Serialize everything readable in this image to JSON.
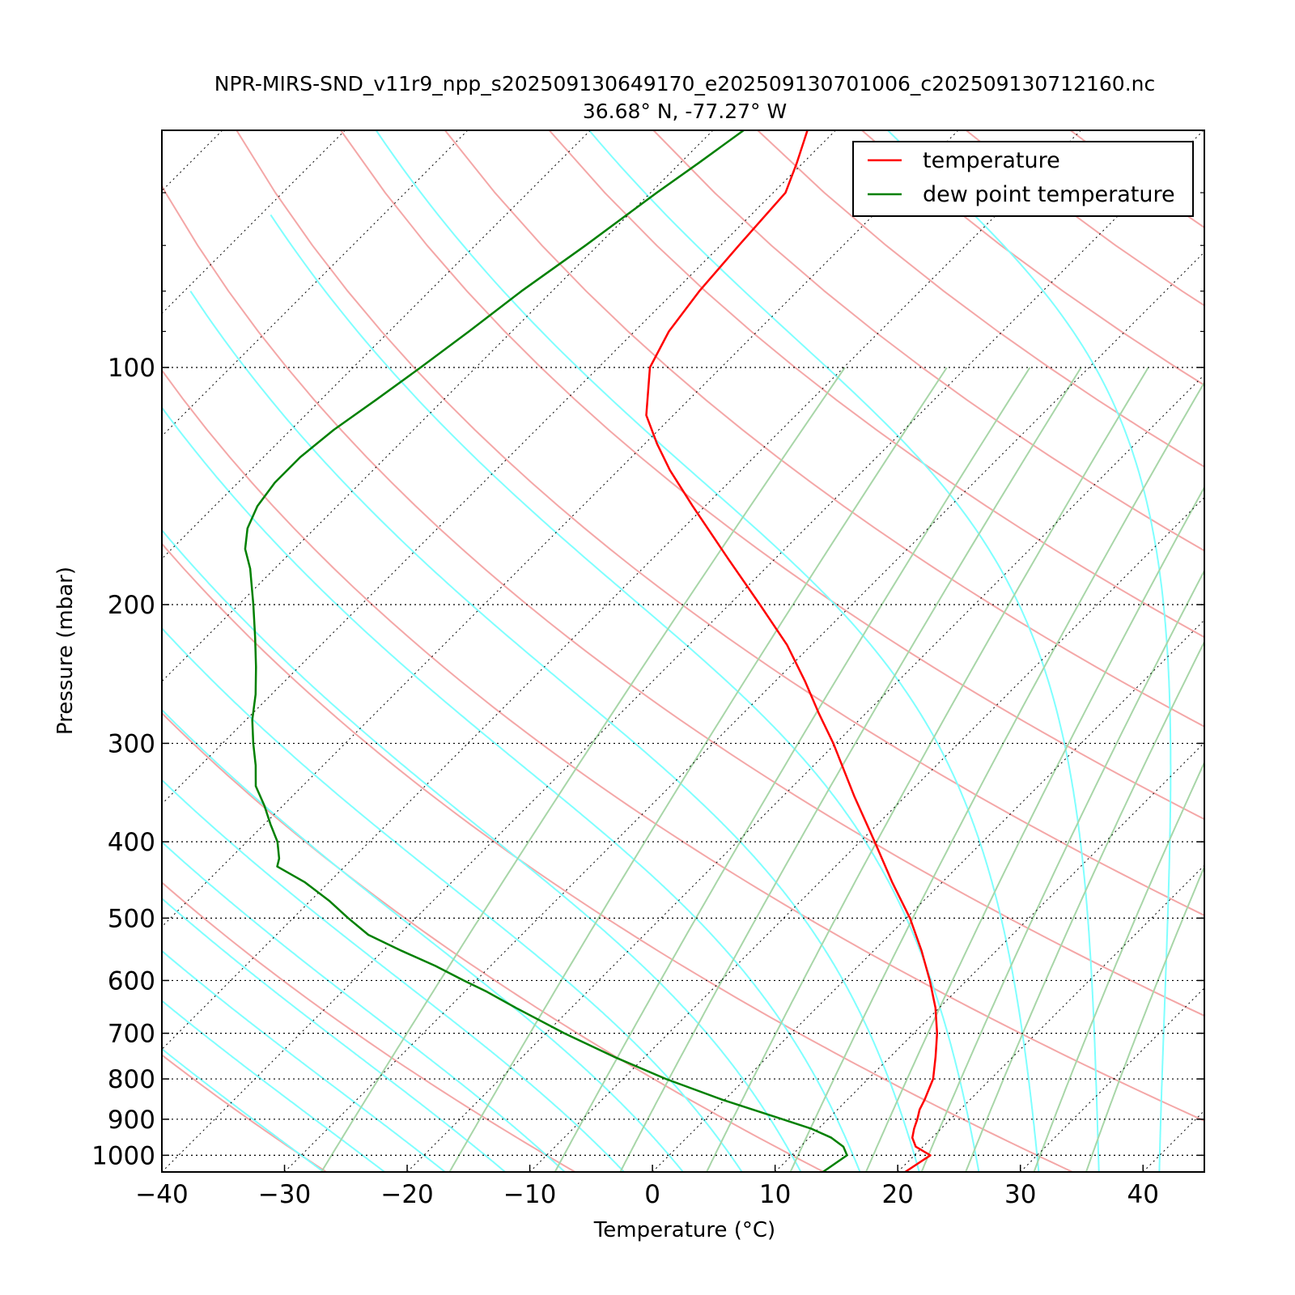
{
  "chart_data": {
    "type": "line",
    "title": "NPR-MIRS-SND_v11r9_npp_s202509130649170_e202509130701006_c202509130712160.nc",
    "subtitle": "36.68° N, -77.27° W",
    "xlabel": "Temperature (°C)",
    "ylabel": "Pressure (mbar)",
    "xlim": [
      -40,
      45
    ],
    "ylim": [
      1050,
      50
    ],
    "y_scale": "log",
    "x_ticks": [
      "−40",
      "−30",
      "−20",
      "−10",
      "0",
      "10",
      "20",
      "30",
      "40"
    ],
    "y_ticks": [
      "100",
      "200",
      "300",
      "400",
      "500",
      "600",
      "700",
      "800",
      "900",
      "1000"
    ],
    "legend_position": "top-right",
    "colors": {
      "temperature": "#ff0000",
      "dew_point": "#008000",
      "dry_adiabat": "#f4a7a7",
      "moist_adiabat": "#7fffff",
      "mixing_ratio": "#a8d6a8",
      "isotherm": "#000000"
    },
    "series": [
      {
        "name": "temperature",
        "pressure": [
          1050,
          1000,
          975,
          950,
          925,
          900,
          875,
          850,
          800,
          750,
          700,
          650,
          600,
          550,
          500,
          450,
          400,
          350,
          300,
          275,
          250,
          225,
          200,
          175,
          150,
          135,
          125,
          115,
          100,
          90,
          80,
          70,
          60,
          55,
          50
        ],
        "values": [
          20.6,
          21.3,
          19.4,
          18.4,
          17.8,
          17.3,
          16.7,
          16.3,
          15.3,
          13.7,
          11.9,
          9.7,
          7.0,
          3.9,
          0.3,
          -4.1,
          -8.8,
          -14.2,
          -20.2,
          -23.8,
          -27.6,
          -32.0,
          -37.5,
          -43.8,
          -51.0,
          -55.8,
          -59.0,
          -62.2,
          -65.8,
          -67.2,
          -68.0,
          -68.5,
          -69.0,
          -70.5,
          -72.3
        ]
      },
      {
        "name": "dew point temperature",
        "pressure": [
          1050,
          1000,
          975,
          950,
          925,
          900,
          850,
          800,
          750,
          700,
          650,
          620,
          600,
          575,
          550,
          525,
          500,
          475,
          450,
          430,
          420,
          400,
          380,
          360,
          340,
          320,
          300,
          280,
          260,
          240,
          220,
          200,
          180,
          170,
          160,
          150,
          140,
          130,
          120,
          110,
          100,
          90,
          80,
          70,
          60,
          55,
          50
        ],
        "values": [
          13.9,
          14.5,
          13.5,
          11.8,
          9.4,
          6.3,
          -0.2,
          -6.5,
          -12.5,
          -18.5,
          -24.5,
          -28.2,
          -31.0,
          -34.5,
          -38.5,
          -42.5,
          -45.5,
          -48.5,
          -52.0,
          -55.5,
          -56.0,
          -57.5,
          -59.5,
          -61.5,
          -63.8,
          -65.5,
          -67.5,
          -69.5,
          -71.3,
          -73.5,
          -76.0,
          -78.8,
          -82.0,
          -84.0,
          -85.5,
          -86.5,
          -87.0,
          -87.0,
          -86.5,
          -85.5,
          -84.5,
          -83.5,
          -82.5,
          -81.0,
          -79.5,
          -78.5,
          -77.5
        ]
      }
    ]
  }
}
